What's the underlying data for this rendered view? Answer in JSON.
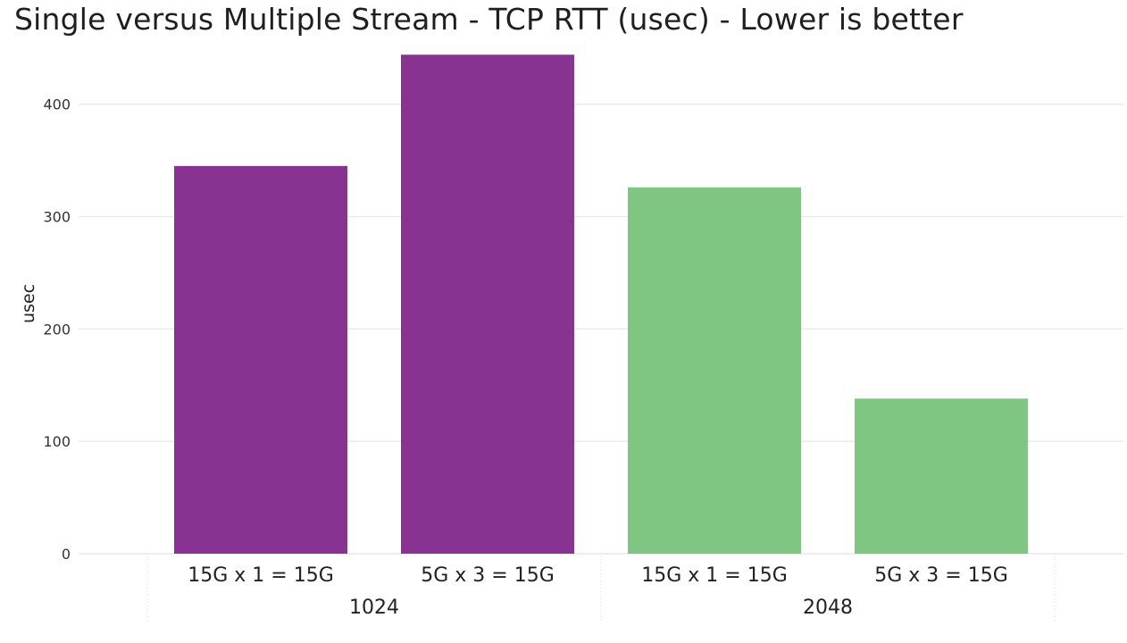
{
  "chart_data": {
    "type": "bar",
    "title": "Single versus Multiple Stream - TCP RTT (usec) - Lower is better",
    "xlabel": "",
    "ylabel": "usec",
    "ylim": [
      0,
      445
    ],
    "yticks": [
      0,
      100,
      200,
      300,
      400
    ],
    "grid": true,
    "groups": [
      {
        "label": "1024",
        "color": "#883391",
        "categories": [
          "15G x 1 = 15G",
          "5G x 3 = 15G"
        ],
        "values": [
          345,
          444
        ]
      },
      {
        "label": "2048",
        "color": "#80c683",
        "categories": [
          "15G x 1 = 15G",
          "5G x 3 = 15G"
        ],
        "values": [
          326,
          138
        ]
      }
    ]
  }
}
